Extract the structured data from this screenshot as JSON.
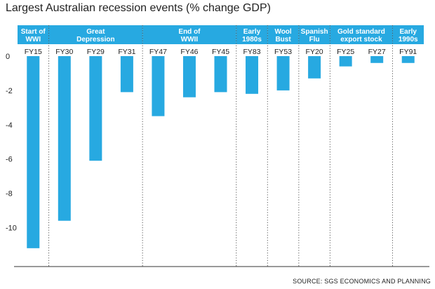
{
  "title": "Largest Australian recession events (% change GDP)",
  "source": "SOURCE: SGS ECONOMICS AND PLANNING",
  "colors": {
    "bar": "#27a9e1",
    "header": "#27a9e1"
  },
  "chart_data": {
    "type": "bar",
    "title": "Largest Australian recession events (% change GDP)",
    "ylim": [
      -12,
      0.5
    ],
    "yticks": [
      0,
      -2,
      -4,
      -6,
      -8,
      -10
    ],
    "grid": false,
    "groups": [
      {
        "label": "Start of WWI",
        "lines": [
          "Start of",
          "WWI"
        ],
        "categories": [
          "FY15"
        ],
        "values": [
          -11.2
        ]
      },
      {
        "label": "Great Depression",
        "lines": [
          "Great",
          "Depression"
        ],
        "categories": [
          "FY30",
          "FY29",
          "FY31"
        ],
        "values": [
          -9.6,
          -6.1,
          -2.1
        ]
      },
      {
        "label": "End of WWII",
        "lines": [
          "End of",
          "WWII"
        ],
        "categories": [
          "FY47",
          "FY46",
          "FY45"
        ],
        "values": [
          -3.5,
          -2.4,
          -2.1
        ]
      },
      {
        "label": "Early 1980s",
        "lines": [
          "Early",
          "1980s"
        ],
        "categories": [
          "FY83"
        ],
        "values": [
          -2.2
        ]
      },
      {
        "label": "Wool Bust",
        "lines": [
          "Wool",
          "Bust"
        ],
        "categories": [
          "FY53"
        ],
        "values": [
          -2.0
        ]
      },
      {
        "label": "Spanish Flu",
        "lines": [
          "Spanish",
          "Flu"
        ],
        "categories": [
          "FY20"
        ],
        "values": [
          -1.3
        ]
      },
      {
        "label": "Gold standard export stock",
        "lines": [
          "Gold standard",
          "export stock"
        ],
        "categories": [
          "FY25",
          "FY27"
        ],
        "values": [
          -0.6,
          -0.4
        ]
      },
      {
        "label": "Early 1990s",
        "lines": [
          "Early",
          "1990s"
        ],
        "categories": [
          "FY91"
        ],
        "values": [
          -0.4
        ]
      }
    ]
  }
}
